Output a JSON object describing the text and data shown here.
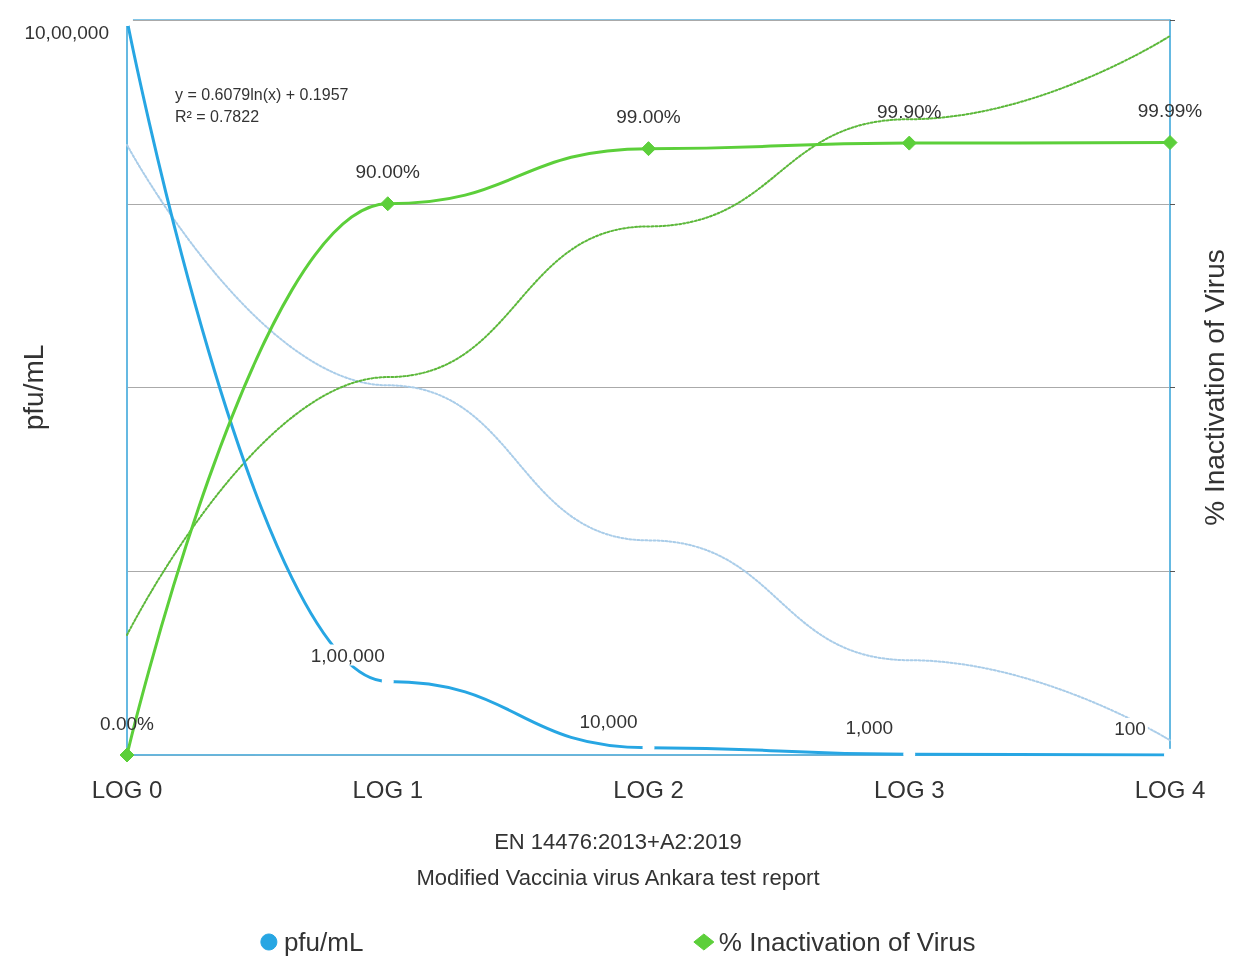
{
  "chart_data": {
    "type": "line",
    "categories": [
      "LOG 0",
      "LOG 1",
      "LOG 2",
      "LOG 3",
      "LOG 4"
    ],
    "ylabel": "pfu/mL",
    "y2label": "% Inactivation of Virus",
    "ylim": [
      0,
      1000000
    ],
    "y2lim": [
      0,
      120
    ],
    "y2ticks": [
      {
        "value": 0,
        "label": null
      },
      {
        "value": 30,
        "label": null
      },
      {
        "value": 60,
        "label": null
      },
      {
        "value": 90,
        "label": null
      },
      {
        "value": 120,
        "label": null
      }
    ],
    "grid": "y",
    "legend": "bottom",
    "series": [
      {
        "name": "pfu/mL",
        "color": "#27a6e3",
        "marker": "circle",
        "line_style": "solid",
        "values": [
          1000000,
          100000,
          10000,
          1000,
          100
        ],
        "value_labels": [
          "10,00,000",
          "1,00,000",
          "10,000",
          "1,000",
          "100"
        ]
      },
      {
        "name": "% Inactivation of Virus",
        "color": "#5ccf3a",
        "marker": "diamond",
        "line_style": "solid",
        "axis": "y2",
        "values": [
          0,
          90,
          99,
          99.9,
          99.99
        ],
        "value_labels": [
          "0.00%",
          "90.00%",
          "99.00%",
          "99.90%",
          "99.99%"
        ]
      },
      {
        "color": "#aacde9",
        "marker": "none",
        "line_style": "dotted",
        "values": [
          830000,
          503000,
          292000,
          129000,
          20000
        ]
      },
      {
        "color": "#5cb83a",
        "marker": "none",
        "line_style": "dotted",
        "axis": "y2",
        "values": [
          19.6,
          61.7,
          86.3,
          103.8,
          117.4
        ]
      }
    ],
    "annotations": [
      "y = 0.6079ln(x) + 0.1957",
      "R² = 0.7822",
      "EN 14476:2013+A2:2019",
      "Modified Vaccinia virus Ankara test report"
    ]
  }
}
